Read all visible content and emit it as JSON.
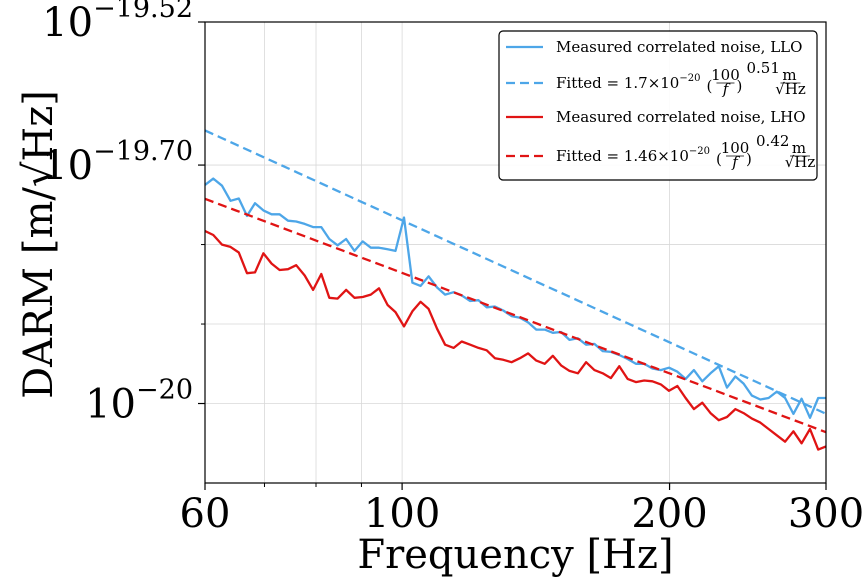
{
  "chart_data": {
    "type": "line",
    "xlabel": "Frequency [Hz]",
    "ylabel": "DARM [m/√Hz]",
    "xscale": "log",
    "yscale": "log",
    "xlim": [
      60,
      300
    ],
    "ylim_log10": [
      -20.1,
      -19.52
    ],
    "x_ticks": [
      {
        "value": 60,
        "label": "60"
      },
      {
        "value": 100,
        "label": "100"
      },
      {
        "value": 200,
        "label": "200"
      },
      {
        "value": 300,
        "label": "300"
      }
    ],
    "y_ticks": [
      {
        "log10": -20.0,
        "base": "10",
        "exp": "−20"
      },
      {
        "log10": -19.7,
        "base": "10",
        "exp": "−19.70"
      },
      {
        "log10": -19.52,
        "base": "10",
        "exp": "−19.52"
      }
    ],
    "grid": true,
    "legend_position": "upper right",
    "series": [
      {
        "name": "Measured correlated noise, LLO",
        "style": "solid",
        "color": "#4da6e8",
        "x": [
          60,
          61.3,
          62.7,
          64.1,
          65.5,
          66.9,
          68.3,
          69.8,
          71.3,
          72.8,
          74.4,
          76.0,
          77.7,
          79.4,
          81.1,
          82.8,
          84.6,
          86.5,
          88.4,
          90.3,
          92.2,
          94.2,
          96.3,
          98.3,
          100.5,
          102.7,
          104.9,
          107.1,
          109.5,
          111.8,
          114.3,
          116.7,
          119.3,
          121.9,
          124.5,
          127.2,
          130.0,
          132.8,
          135.7,
          138.6,
          141.6,
          144.7,
          147.8,
          151.0,
          154.3,
          157.7,
          161.1,
          164.6,
          168.2,
          171.8,
          175.6,
          179.4,
          183.3,
          187.3,
          191.3,
          195.5,
          199.7,
          204.1,
          208.5,
          213.0,
          217.7,
          222.4,
          227.2,
          232.1,
          237.2,
          242.3,
          247.6,
          253.0,
          258.5,
          264.1,
          269.8,
          275.7,
          281.6,
          287.8,
          294.0,
          300
        ],
        "y_log10": [
          -19.725,
          -19.717,
          -19.726,
          -19.745,
          -19.742,
          -19.764,
          -19.748,
          -19.757,
          -19.762,
          -19.762,
          -19.77,
          -19.771,
          -19.774,
          -19.778,
          -19.778,
          -19.793,
          -19.801,
          -19.793,
          -19.808,
          -19.796,
          -19.804,
          -19.804,
          -19.806,
          -19.808,
          -19.766,
          -19.848,
          -19.852,
          -19.84,
          -19.854,
          -19.863,
          -19.86,
          -19.864,
          -19.871,
          -19.87,
          -19.879,
          -19.878,
          -19.883,
          -19.89,
          -19.892,
          -19.898,
          -19.907,
          -19.907,
          -19.911,
          -19.91,
          -19.92,
          -19.918,
          -19.926,
          -19.925,
          -19.934,
          -19.935,
          -19.939,
          -19.944,
          -19.95,
          -19.95,
          -19.956,
          -19.958,
          -19.955,
          -19.96,
          -19.969,
          -19.958,
          -19.972,
          -19.962,
          -19.953,
          -19.98,
          -19.966,
          -19.975,
          -19.99,
          -19.995,
          -19.993,
          -19.985,
          -19.993,
          -20.013,
          -19.994,
          -20.018,
          -19.993,
          -19.993
        ]
      },
      {
        "name": "Fitted = 1.7×10⁻²⁰ (100/f)^0.51 m/√Hz",
        "style": "dashed",
        "color": "#4da6e8",
        "amplitude": 1.7e-20,
        "exponent": 0.51
      },
      {
        "name": "Measured correlated noise, LHO",
        "style": "solid",
        "color": "#e01414",
        "x": [
          60,
          61.3,
          62.7,
          64.1,
          65.5,
          66.9,
          68.3,
          69.8,
          71.3,
          72.8,
          74.4,
          76.0,
          77.7,
          79.4,
          81.1,
          82.8,
          84.6,
          86.5,
          88.4,
          90.3,
          92.2,
          94.2,
          96.3,
          98.3,
          100.5,
          102.7,
          104.9,
          107.1,
          109.5,
          111.8,
          114.3,
          116.7,
          119.3,
          121.9,
          124.5,
          127.2,
          130.0,
          132.8,
          135.7,
          138.6,
          141.6,
          144.7,
          147.8,
          151.0,
          154.3,
          157.7,
          161.1,
          164.6,
          168.2,
          171.8,
          175.6,
          179.4,
          183.3,
          187.3,
          191.3,
          195.5,
          199.7,
          204.1,
          208.5,
          213.0,
          217.7,
          222.4,
          227.2,
          232.1,
          237.2,
          242.3,
          247.6,
          253.0,
          258.5,
          264.1,
          269.8,
          275.7,
          281.6,
          287.8,
          294.0,
          300
        ],
        "y_log10": [
          -19.783,
          -19.788,
          -19.8,
          -19.803,
          -19.81,
          -19.836,
          -19.835,
          -19.811,
          -19.824,
          -19.832,
          -19.831,
          -19.826,
          -19.839,
          -19.857,
          -19.837,
          -19.867,
          -19.868,
          -19.857,
          -19.867,
          -19.866,
          -19.863,
          -19.855,
          -19.876,
          -19.885,
          -19.903,
          -19.884,
          -19.872,
          -19.881,
          -19.906,
          -19.926,
          -19.93,
          -19.922,
          -19.926,
          -19.93,
          -19.933,
          -19.943,
          -19.945,
          -19.948,
          -19.943,
          -19.937,
          -19.946,
          -19.95,
          -19.94,
          -19.952,
          -19.959,
          -19.962,
          -19.948,
          -19.958,
          -19.962,
          -19.968,
          -19.953,
          -19.969,
          -19.973,
          -19.971,
          -19.972,
          -19.976,
          -19.984,
          -19.978,
          -19.993,
          -20.007,
          -19.999,
          -20.012,
          -20.021,
          -20.017,
          -20.007,
          -20.012,
          -20.019,
          -20.024,
          -20.032,
          -20.04,
          -20.048,
          -20.035,
          -20.05,
          -20.032,
          -20.058,
          -20.054
        ]
      },
      {
        "name": "Fitted = 1.46×10⁻²⁰ (100/f)^0.42 m/√Hz",
        "style": "dashed",
        "color": "#e01414",
        "amplitude": 1.46e-20,
        "exponent": 0.42
      }
    ],
    "legend": {
      "items": [
        {
          "type": "solid",
          "color": "#4da6e8",
          "label": "Measured correlated noise, LLO"
        },
        {
          "type": "fit",
          "color": "#4da6e8",
          "prefix": "Fitted = 1.7×10",
          "sup": "−20",
          "frac_num": "100",
          "frac_den": "f",
          "power": "0.51",
          "unit_num": "m",
          "unit_den": "√Hz"
        },
        {
          "type": "solid",
          "color": "#e01414",
          "label": "Measured correlated noise, LHO"
        },
        {
          "type": "fit",
          "color": "#e01414",
          "prefix": "Fitted = 1.46×10",
          "sup": "−20",
          "frac_num": "100",
          "frac_den": "f",
          "power": "0.42",
          "unit_num": "m",
          "unit_den": "√Hz"
        }
      ]
    }
  }
}
